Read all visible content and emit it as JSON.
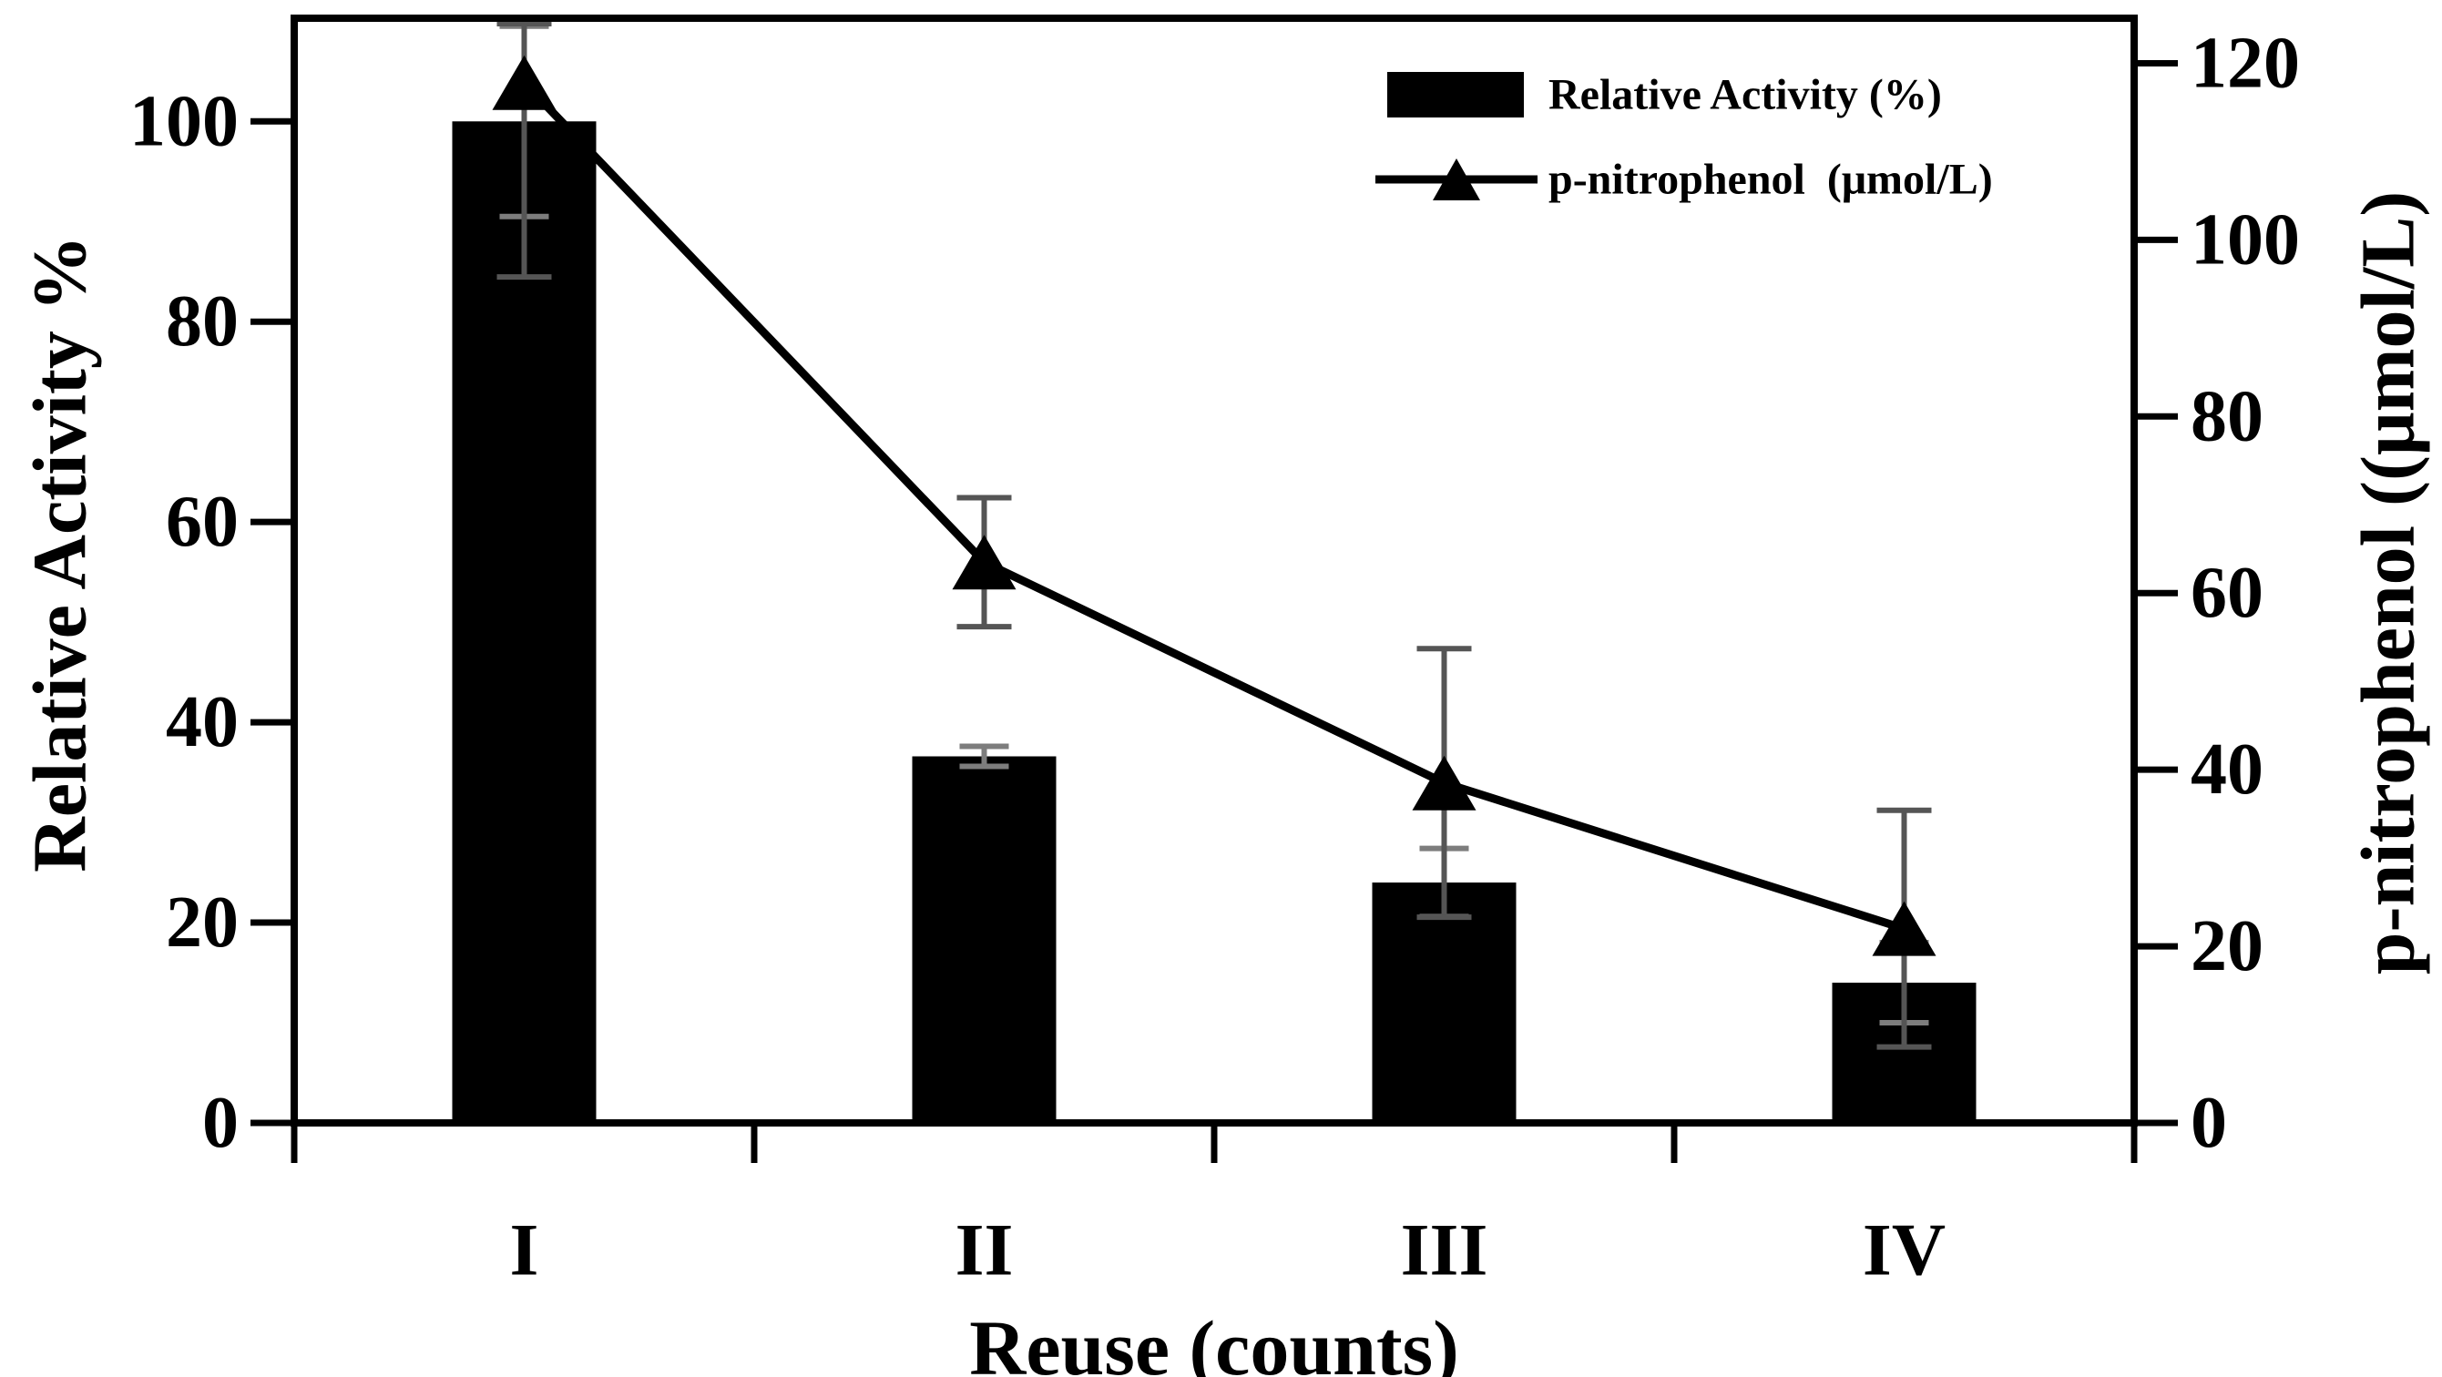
{
  "chart_data": {
    "type": "bar-line-dual-axis",
    "categories": [
      "I",
      "II",
      "III",
      "IV"
    ],
    "x_axis": {
      "label": "Reuse (counts)"
    },
    "left_axis": {
      "label": "Relative Activity %",
      "ticks": [
        0,
        20,
        40,
        60,
        80,
        100
      ],
      "min": 0,
      "max": 110.3
    },
    "right_axis": {
      "label": "p-nitrophenol ((μmol/L)",
      "ticks": [
        0,
        20,
        40,
        60,
        80,
        100,
        120
      ],
      "min": 0,
      "max": 125.1
    },
    "series": [
      {
        "name": "Relative Activity (%)",
        "type": "bar",
        "axis": "left",
        "color": "#000000",
        "values": [
          100,
          36.6,
          24,
          14
        ],
        "errors": [
          9.5,
          1,
          3.4,
          4
        ],
        "error_color": "#7d7d7d"
      },
      {
        "name": "p-nitrophenol  (μmol/L)",
        "type": "line",
        "axis": "right",
        "marker": "triangle",
        "color": "#000000",
        "values": [
          117.8,
          63.5,
          38.5,
          22
        ],
        "errors": [
          22,
          7.3,
          15.2,
          13.4
        ],
        "error_color": "#555555"
      }
    ],
    "legend": {
      "position": "top-right",
      "items": [
        "Relative Activity (%)",
        "p-nitrophenol  (μmol/L)"
      ]
    },
    "grid": false
  },
  "colors": {
    "background": "#ffffff",
    "frame": "#000000",
    "text": "#000000"
  }
}
